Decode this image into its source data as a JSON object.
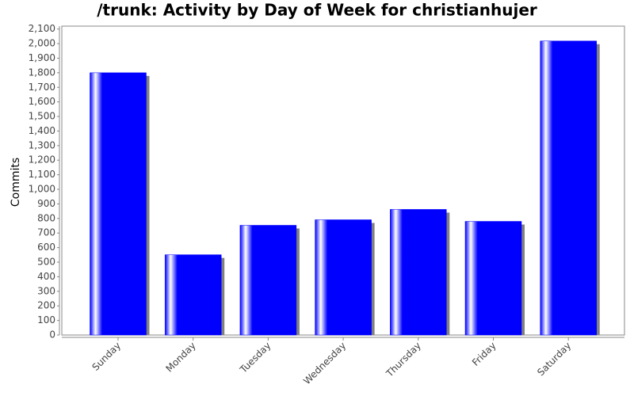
{
  "chart_data": {
    "type": "bar",
    "title": "/trunk: Activity by Day of Week for christianhujer",
    "y_label": "Commits",
    "categories": [
      "Sunday",
      "Monday",
      "Tuesday",
      "Wednesday",
      "Thursday",
      "Friday",
      "Saturday"
    ],
    "values": [
      1800,
      551,
      753,
      791,
      862,
      780,
      2018
    ],
    "color": "#0000ff",
    "ylim": [
      0,
      2120
    ],
    "yticks": [
      0,
      100,
      200,
      300,
      400,
      500,
      600,
      700,
      800,
      900,
      {
        "value": 1000,
        "label": "1,000"
      },
      {
        "value": 1100,
        "label": "1,100"
      },
      {
        "value": 1200,
        "label": "1,200"
      },
      {
        "value": 1300,
        "label": "1,300"
      },
      {
        "value": 1400,
        "label": "1,400"
      },
      {
        "value": 1500,
        "label": "1,500"
      },
      {
        "value": 1600,
        "label": "1,600"
      },
      {
        "value": 1700,
        "label": "1,700"
      },
      {
        "value": 1800,
        "label": "1,800"
      },
      {
        "value": 1900,
        "label": "1,900"
      },
      {
        "value": 2000,
        "label": "2,000"
      },
      {
        "value": 2100,
        "label": "2,100"
      }
    ]
  }
}
